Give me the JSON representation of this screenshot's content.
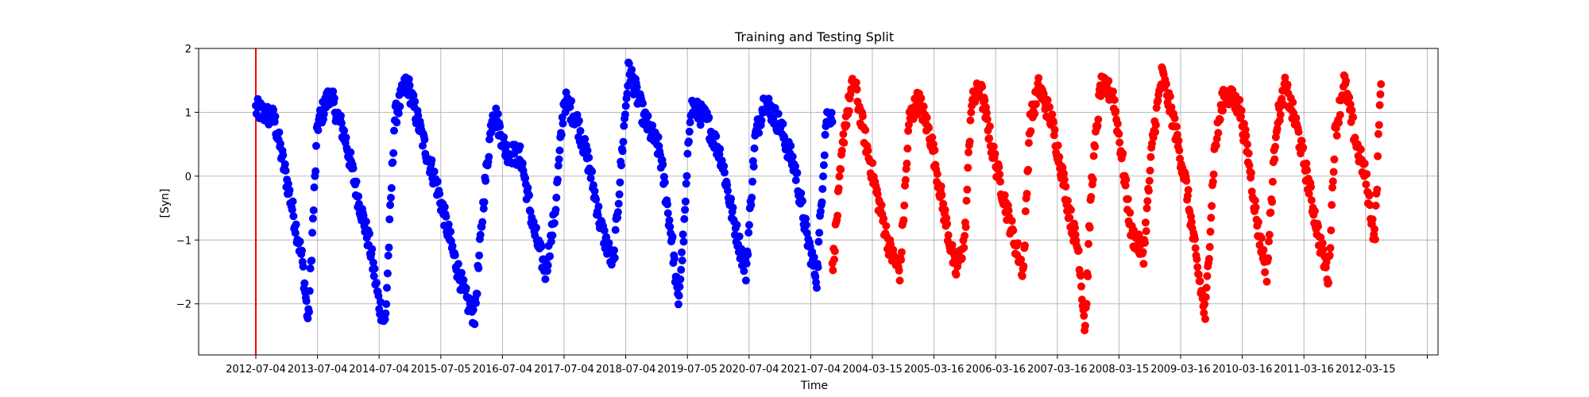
{
  "chart_data": {
    "type": "scatter",
    "title": "Training and Testing Split",
    "xlabel": "Time",
    "ylabel": "[Syn]",
    "ylim": [
      -2.8,
      2.0
    ],
    "y_ticks": [
      -2,
      -1,
      0,
      1,
      2
    ],
    "x_tick_labels": [
      "2012-07-04",
      "2013-07-04",
      "2014-07-04",
      "2015-07-05",
      "2016-07-04",
      "2017-07-04",
      "2018-07-04",
      "2019-07-05",
      "2020-07-04",
      "2021-07-04",
      "2004-03-15",
      "2005-03-16",
      "2006-03-16",
      "2007-03-16",
      "2008-03-15",
      "2009-03-16",
      "2010-03-16",
      "2011-03-16",
      "2012-03-15",
      ""
    ],
    "grid": true,
    "split_marker": {
      "x_index": 0,
      "color": "#ff0000"
    },
    "series": [
      {
        "color": "#0000ff",
        "x_range": [
          0,
          9.35
        ],
        "cycle_points": [
          [
            0,
            1.05
          ],
          [
            0.3,
            0.9
          ],
          [
            0.55,
            -0.3
          ],
          [
            0.75,
            -1.3
          ],
          [
            0.85,
            -2.3
          ],
          [
            1.0,
            0.8
          ],
          [
            1.2,
            1.3
          ],
          [
            1.45,
            0.6
          ],
          [
            1.65,
            -0.3
          ],
          [
            1.85,
            -1.1
          ],
          [
            2.0,
            -2.0
          ],
          [
            2.1,
            -2.3
          ],
          [
            2.25,
            0.9
          ],
          [
            2.45,
            1.5
          ],
          [
            2.7,
            0.6
          ],
          [
            2.95,
            -0.2
          ],
          [
            3.2,
            -1.2
          ],
          [
            3.4,
            -1.9
          ],
          [
            3.55,
            -2.2
          ],
          [
            3.7,
            -0.3
          ],
          [
            3.85,
            1.1
          ],
          [
            4.05,
            0.4
          ],
          [
            4.3,
            0.3
          ],
          [
            4.5,
            -0.8
          ],
          [
            4.7,
            -1.5
          ],
          [
            4.85,
            -0.6
          ],
          [
            5.0,
            1.2
          ],
          [
            5.2,
            0.9
          ],
          [
            5.4,
            0.2
          ],
          [
            5.6,
            -0.8
          ],
          [
            5.8,
            -1.4
          ],
          [
            5.95,
            0.5
          ],
          [
            6.05,
            1.7
          ],
          [
            6.3,
            0.9
          ],
          [
            6.55,
            0.4
          ],
          [
            6.75,
            -1.0
          ],
          [
            6.85,
            -2.0
          ],
          [
            6.95,
            -0.8
          ],
          [
            7.05,
            1.1
          ],
          [
            7.3,
            0.9
          ],
          [
            7.55,
            0.3
          ],
          [
            7.75,
            -0.7
          ],
          [
            7.95,
            -1.5
          ],
          [
            8.1,
            0.6
          ],
          [
            8.25,
            1.2
          ],
          [
            8.5,
            0.8
          ],
          [
            8.75,
            0.1
          ],
          [
            8.95,
            -1.0
          ],
          [
            9.1,
            -1.6
          ],
          [
            9.25,
            0.9
          ],
          [
            9.35,
            1.0
          ]
        ]
      },
      {
        "color": "#ff0000",
        "x_range": [
          9.35,
          18.25
        ],
        "cycle_points": [
          [
            9.35,
            -1.5
          ],
          [
            9.55,
            0.8
          ],
          [
            9.7,
            1.5
          ],
          [
            9.9,
            0.5
          ],
          [
            10.1,
            -0.4
          ],
          [
            10.3,
            -1.2
          ],
          [
            10.45,
            -1.5
          ],
          [
            10.6,
            0.9
          ],
          [
            10.75,
            1.2
          ],
          [
            10.95,
            0.6
          ],
          [
            11.15,
            -0.5
          ],
          [
            11.35,
            -1.5
          ],
          [
            11.5,
            -1.0
          ],
          [
            11.6,
            1.1
          ],
          [
            11.75,
            1.4
          ],
          [
            11.95,
            0.4
          ],
          [
            12.1,
            -0.2
          ],
          [
            12.3,
            -1.0
          ],
          [
            12.45,
            -1.5
          ],
          [
            12.55,
            0.8
          ],
          [
            12.7,
            1.4
          ],
          [
            12.9,
            0.9
          ],
          [
            13.05,
            0.2
          ],
          [
            13.2,
            -0.6
          ],
          [
            13.35,
            -1.2
          ],
          [
            13.45,
            -2.4
          ],
          [
            13.55,
            -0.2
          ],
          [
            13.7,
            1.4
          ],
          [
            13.9,
            1.3
          ],
          [
            14.05,
            0.3
          ],
          [
            14.2,
            -0.9
          ],
          [
            14.4,
            -1.2
          ],
          [
            14.55,
            0.6
          ],
          [
            14.7,
            1.6
          ],
          [
            14.9,
            0.8
          ],
          [
            15.1,
            -0.2
          ],
          [
            15.25,
            -1.3
          ],
          [
            15.4,
            -2.2
          ],
          [
            15.55,
            0.4
          ],
          [
            15.7,
            1.3
          ],
          [
            15.95,
            1.1
          ],
          [
            16.1,
            0.3
          ],
          [
            16.25,
            -0.8
          ],
          [
            16.4,
            -1.5
          ],
          [
            16.55,
            0.8
          ],
          [
            16.7,
            1.4
          ],
          [
            16.9,
            0.7
          ],
          [
            17.05,
            0.0
          ],
          [
            17.25,
            -1.0
          ],
          [
            17.4,
            -1.6
          ],
          [
            17.5,
            0.6
          ],
          [
            17.65,
            1.5
          ],
          [
            17.85,
            0.5
          ],
          [
            18.0,
            0.0
          ],
          [
            18.15,
            -1.0
          ],
          [
            18.25,
            1.6
          ]
        ]
      }
    ]
  }
}
